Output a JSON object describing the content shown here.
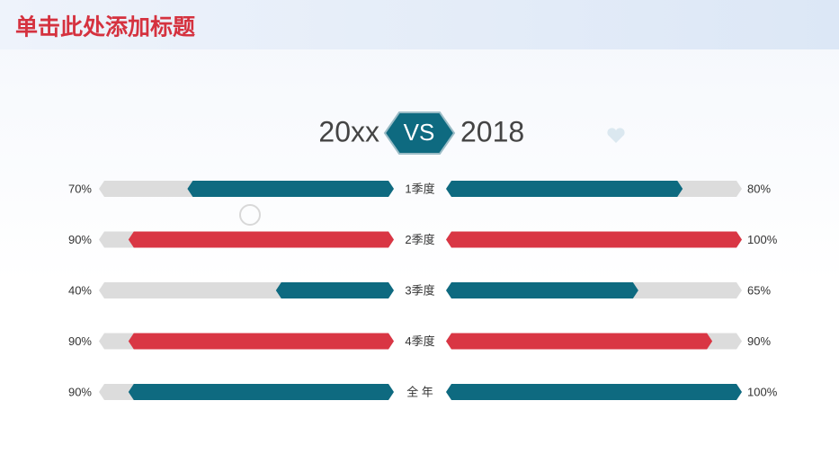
{
  "chart_data": {
    "type": "butterfly",
    "title": "单击此处添加标题",
    "separator": "VS",
    "categories": [
      "1季度",
      "2季度",
      "3季度",
      "4季度",
      "全 年"
    ],
    "colors": [
      "#0e6a80",
      "#d93644",
      "#0e6a80",
      "#d93644",
      "#0e6a80"
    ],
    "xlim": [
      0,
      100
    ],
    "series": [
      {
        "name": "20xx",
        "values": [
          70,
          90,
          40,
          90,
          90
        ],
        "value_labels": [
          "70%",
          "90%",
          "40%",
          "90%",
          "90%"
        ]
      },
      {
        "name": "2018",
        "values": [
          80,
          100,
          65,
          90,
          100
        ],
        "value_labels": [
          "80%",
          "100%",
          "65%",
          "90%",
          "100%"
        ]
      }
    ]
  }
}
